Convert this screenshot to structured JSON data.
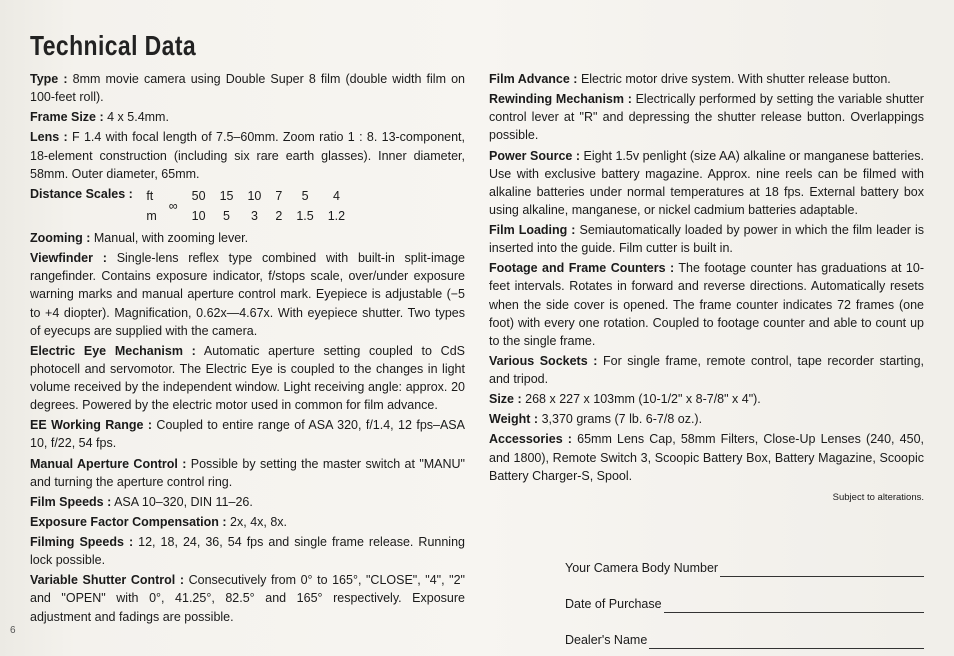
{
  "title": "Technical Data",
  "col1": {
    "type_label": "Type :",
    "type_text": "8mm movie camera using Double Super 8 film (double width film on 100-feet roll).",
    "framesize_label": "Frame Size :",
    "framesize_text": "4 x 5.4mm.",
    "lens_label": "Lens :",
    "lens_text": "F 1.4 with focal length of 7.5–60mm.  Zoom ratio 1 : 8.  13-component, 18-element construction (including six rare earth glasses).  Inner diameter, 58mm.  Outer diameter, 65mm.",
    "dist_label": "Distance Scales :",
    "dist_ft_unit": "ft",
    "dist_m_unit": "m",
    "dist_inf": "∞",
    "dist_ft": [
      "50",
      "15",
      "10",
      "7",
      "5",
      "4"
    ],
    "dist_m": [
      "10",
      "5",
      "3",
      "2",
      "1.5",
      "1.2"
    ],
    "zoom_label": "Zooming :",
    "zoom_text": "Manual, with zooming lever.",
    "vf_label": "Viewfinder :",
    "vf_text": "Single-lens reflex type combined with built-in split-image rangefinder.  Contains exposure indicator, f/stops scale, over/under exposure warning marks and manual aperture control mark.  Eyepiece is adjustable (−5 to +4 diopter).  Magnification, 0.62x—4.67x.  With eyepiece shutter.  Two types of eyecups are supplied with the camera.",
    "ee_label": "Electric Eye Mechanism :",
    "ee_text": "Automatic aperture setting coupled to CdS photocell and servomotor.  The Electric Eye is coupled to the changes in light volume received by the independent window.  Light receiving angle: approx. 20 degrees.  Powered by the electric motor used in common for film advance.",
    "eerange_label": "EE Working Range :",
    "eerange_text": "Coupled to entire range of ASA 320, f/1.4, 12 fps–ASA 10, f/22, 54 fps.",
    "manap_label": "Manual Aperture Control :",
    "manap_text": "Possible by setting the master switch at \"MANU\" and turning the aperture control ring.",
    "filmspd_label": "Film Speeds :",
    "filmspd_text": "ASA 10–320, DIN 11–26.",
    "expcomp_label": "Exposure Factor Compensation :",
    "expcomp_text": "2x, 4x, 8x.",
    "filmingspd_label": "Filming Speeds :",
    "filmingspd_text": "12, 18, 24, 36, 54 fps and single frame release.  Running lock possible.",
    "varshut_label": "Variable Shutter Control :",
    "varshut_text": "Consecutively from 0° to 165°, \"CLOSE\", \"4\", \"2\" and \"OPEN\" with 0°, 41.25°, 82.5° and 165° respectively. Exposure adjustment and fadings are possible."
  },
  "col2": {
    "filmadv_label": "Film Advance :",
    "filmadv_text": "Electric motor drive system.  With shutter release button.",
    "rewind_label": "Rewinding Mechanism :",
    "rewind_text": "Electrically performed by setting the variable shutter control lever at \"R\" and depressing the shutter release button.  Overlappings possible.",
    "power_label": "Power Source :",
    "power_text": "Eight 1.5v penlight (size AA) alkaline or manganese batteries.  Use with exclusive battery magazine.  Approx. nine reels can be filmed with alkaline batteries under normal temperatures at 18 fps.  External battery box using alkaline, manganese, or nickel cadmium batteries adaptable.",
    "load_label": "Film Loading :",
    "load_text": "Semiautomatically loaded by power in which the film leader is inserted into the guide.  Film cutter is built in.",
    "count_label": "Footage and Frame Counters :",
    "count_text": "The footage counter has graduations at 10-feet intervals.  Rotates in forward and reverse directions.  Automatically resets when the side cover is opened.  The frame counter indicates 72 frames (one foot) with every one rotation.  Coupled to footage counter and able to count up to the single frame.",
    "sock_label": "Various Sockets :",
    "sock_text": "For single frame, remote control, tape recorder starting, and tripod.",
    "size_label": "Size :",
    "size_text": "268 x 227 x 103mm (10-1/2\" x 8-7/8\" x 4\").",
    "weight_label": "Weight :",
    "weight_text": "3,370 grams (7 lb. 6-7/8 oz.).",
    "acc_label": "Accessories :",
    "acc_text": "65mm Lens Cap, 58mm Filters, Close-Up Lenses (240, 450, and 1800), Remote Switch 3, Scoopic Battery Box, Battery Magazine, Scoopic Battery Charger-S, Spool.",
    "subject": "Subject to alterations."
  },
  "form": {
    "body_no": "Your Camera Body Number",
    "date": "Date of Purchase",
    "dealer": "Dealer's Name"
  },
  "page_number": "6"
}
